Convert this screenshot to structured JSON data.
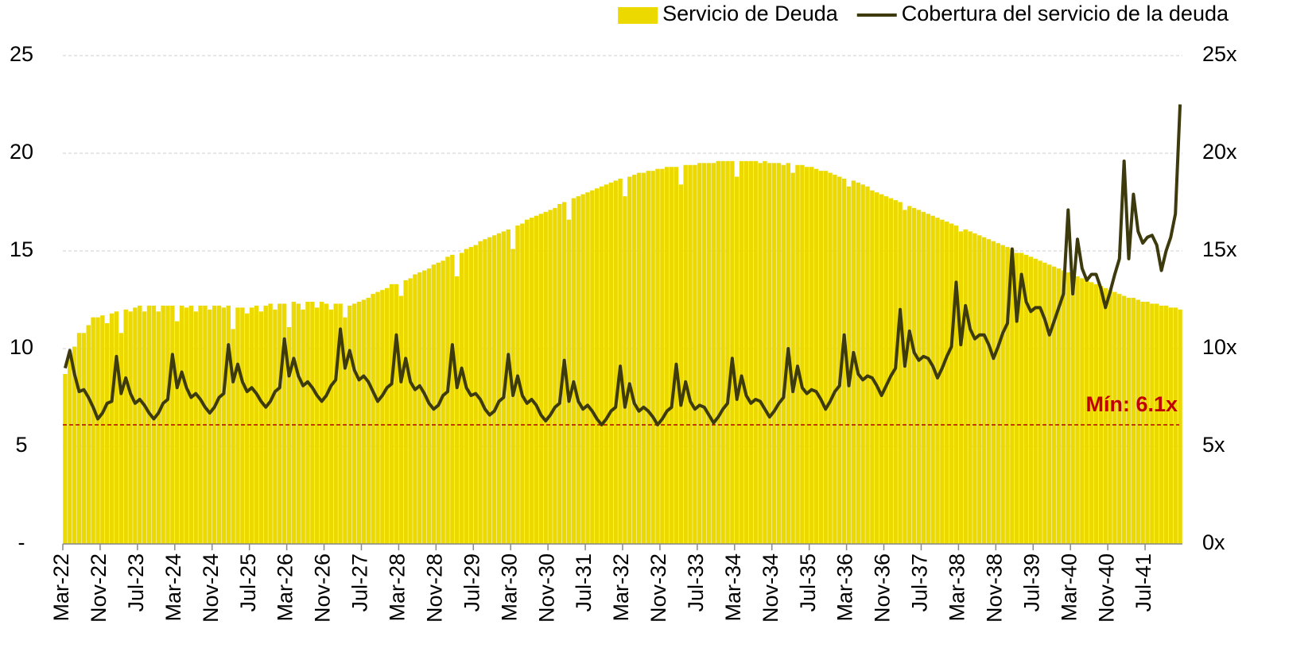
{
  "chart_data": {
    "type": "bar",
    "categories": [
      "Mar-22",
      null,
      null,
      null,
      null,
      null,
      null,
      null,
      "Nov-22",
      null,
      null,
      null,
      null,
      null,
      null,
      null,
      "Jul-23",
      null,
      null,
      null,
      null,
      null,
      null,
      null,
      "Mar-24",
      null,
      null,
      null,
      null,
      null,
      null,
      null,
      "Nov-24",
      null,
      null,
      null,
      null,
      null,
      null,
      null,
      "Jul-25",
      null,
      null,
      null,
      null,
      null,
      null,
      null,
      "Mar-26",
      null,
      null,
      null,
      null,
      null,
      null,
      null,
      "Nov-26",
      null,
      null,
      null,
      null,
      null,
      null,
      null,
      "Jul-27",
      null,
      null,
      null,
      null,
      null,
      null,
      null,
      "Mar-28",
      null,
      null,
      null,
      null,
      null,
      null,
      null,
      "Nov-28",
      null,
      null,
      null,
      null,
      null,
      null,
      null,
      "Jul-29",
      null,
      null,
      null,
      null,
      null,
      null,
      null,
      "Mar-30",
      null,
      null,
      null,
      null,
      null,
      null,
      null,
      "Nov-30",
      null,
      null,
      null,
      null,
      null,
      null,
      null,
      "Jul-31",
      null,
      null,
      null,
      null,
      null,
      null,
      null,
      "Mar-32",
      null,
      null,
      null,
      null,
      null,
      null,
      null,
      "Nov-32",
      null,
      null,
      null,
      null,
      null,
      null,
      null,
      "Jul-33",
      null,
      null,
      null,
      null,
      null,
      null,
      null,
      "Mar-34",
      null,
      null,
      null,
      null,
      null,
      null,
      null,
      "Nov-34",
      null,
      null,
      null,
      null,
      null,
      null,
      null,
      "Jul-35",
      null,
      null,
      null,
      null,
      null,
      null,
      null,
      "Mar-36",
      null,
      null,
      null,
      null,
      null,
      null,
      null,
      "Nov-36",
      null,
      null,
      null,
      null,
      null,
      null,
      null,
      "Jul-37",
      null,
      null,
      null,
      null,
      null,
      null,
      null,
      "Mar-38",
      null,
      null,
      null,
      null,
      null,
      null,
      null,
      "Nov-38",
      null,
      null,
      null,
      null,
      null,
      null,
      null,
      "Jul-39",
      null,
      null,
      null,
      null,
      null,
      null,
      null,
      "Mar-40",
      null,
      null,
      null,
      null,
      null,
      null,
      null,
      "Nov-40",
      null,
      null,
      null,
      null,
      null,
      null,
      null,
      "Jul-41",
      null,
      null,
      null,
      null,
      null,
      null,
      null
    ],
    "series": [
      {
        "name": "Servicio de Deuda",
        "type": "bar",
        "color": "#ebd900",
        "axis": "y",
        "values": [
          8.7,
          9.8,
          10.1,
          10.8,
          10.8,
          11.2,
          11.6,
          11.6,
          11.7,
          11.3,
          11.8,
          11.9,
          10.8,
          12.0,
          11.9,
          12.1,
          12.2,
          11.9,
          12.2,
          12.2,
          11.9,
          12.2,
          12.2,
          12.2,
          11.4,
          12.2,
          12.1,
          12.2,
          11.9,
          12.2,
          12.2,
          12.0,
          12.2,
          12.2,
          12.1,
          12.2,
          11.0,
          12.1,
          12.1,
          11.8,
          12.1,
          12.2,
          11.9,
          12.2,
          12.3,
          12.0,
          12.3,
          12.3,
          11.1,
          12.4,
          12.3,
          12.0,
          12.4,
          12.4,
          12.1,
          12.4,
          12.3,
          12.0,
          12.3,
          12.3,
          11.6,
          12.2,
          12.3,
          12.4,
          12.5,
          12.6,
          12.8,
          12.9,
          13.0,
          13.1,
          13.3,
          13.3,
          12.7,
          13.5,
          13.6,
          13.8,
          13.9,
          14.0,
          14.1,
          14.3,
          14.4,
          14.5,
          14.7,
          14.8,
          13.7,
          14.9,
          15.1,
          15.2,
          15.3,
          15.5,
          15.6,
          15.7,
          15.8,
          15.9,
          16.0,
          16.1,
          15.1,
          16.3,
          16.4,
          16.6,
          16.7,
          16.8,
          16.9,
          17.0,
          17.1,
          17.2,
          17.4,
          17.5,
          16.6,
          17.7,
          17.8,
          17.9,
          18.0,
          18.1,
          18.2,
          18.3,
          18.4,
          18.5,
          18.6,
          18.7,
          17.8,
          18.8,
          18.9,
          19.0,
          19.0,
          19.1,
          19.1,
          19.2,
          19.2,
          19.3,
          19.3,
          19.3,
          18.4,
          19.4,
          19.4,
          19.4,
          19.5,
          19.5,
          19.5,
          19.5,
          19.6,
          19.6,
          19.6,
          19.6,
          18.8,
          19.6,
          19.6,
          19.6,
          19.6,
          19.5,
          19.6,
          19.5,
          19.5,
          19.5,
          19.4,
          19.5,
          19.0,
          19.4,
          19.4,
          19.3,
          19.3,
          19.2,
          19.1,
          19.1,
          19.0,
          18.9,
          18.8,
          18.7,
          18.3,
          18.6,
          18.5,
          18.4,
          18.3,
          18.1,
          18.0,
          17.9,
          17.8,
          17.7,
          17.6,
          17.5,
          17.1,
          17.3,
          17.2,
          17.1,
          17.0,
          16.9,
          16.8,
          16.7,
          16.6,
          16.5,
          16.4,
          16.3,
          16.0,
          16.1,
          16.0,
          15.9,
          15.8,
          15.7,
          15.6,
          15.5,
          15.4,
          15.3,
          15.2,
          15.1,
          14.9,
          14.9,
          14.8,
          14.7,
          14.6,
          14.5,
          14.4,
          14.3,
          14.2,
          14.1,
          14.0,
          13.9,
          13.7,
          13.7,
          13.6,
          13.5,
          13.4,
          13.3,
          13.2,
          13.1,
          13.0,
          12.9,
          12.8,
          12.7,
          12.6,
          12.6,
          12.5,
          12.4,
          12.4,
          12.3,
          12.3,
          12.2,
          12.2,
          12.1,
          12.1,
          12.0
        ]
      },
      {
        "name": "Cobertura del servicio de la deuda",
        "type": "line",
        "color": "#3d3b0d",
        "axis": "y2",
        "values": [
          9.0,
          9.9,
          8.7,
          7.8,
          7.9,
          7.5,
          7.0,
          6.4,
          6.7,
          7.2,
          7.3,
          9.6,
          7.7,
          8.5,
          7.7,
          7.2,
          7.4,
          7.1,
          6.7,
          6.4,
          6.7,
          7.2,
          7.4,
          9.7,
          8.0,
          8.8,
          8.0,
          7.5,
          7.7,
          7.4,
          7.0,
          6.7,
          7.0,
          7.5,
          7.7,
          10.2,
          8.3,
          9.2,
          8.3,
          7.8,
          8.0,
          7.7,
          7.3,
          7.0,
          7.3,
          7.8,
          8.0,
          10.5,
          8.6,
          9.5,
          8.6,
          8.1,
          8.3,
          8.0,
          7.6,
          7.3,
          7.6,
          8.1,
          8.4,
          11.0,
          9.0,
          9.9,
          8.9,
          8.4,
          8.6,
          8.3,
          7.8,
          7.3,
          7.6,
          8.0,
          8.2,
          10.7,
          8.3,
          9.5,
          8.3,
          7.9,
          8.1,
          7.7,
          7.2,
          6.9,
          7.1,
          7.6,
          7.8,
          10.2,
          8.0,
          9.0,
          8.0,
          7.6,
          7.7,
          7.4,
          6.9,
          6.6,
          6.8,
          7.3,
          7.5,
          9.7,
          7.6,
          8.6,
          7.6,
          7.2,
          7.4,
          7.1,
          6.6,
          6.3,
          6.6,
          7.0,
          7.2,
          9.4,
          7.3,
          8.3,
          7.3,
          6.9,
          7.1,
          6.8,
          6.4,
          6.1,
          6.4,
          6.8,
          7.0,
          9.1,
          7.0,
          8.2,
          7.2,
          6.8,
          7.0,
          6.8,
          6.5,
          6.1,
          6.4,
          6.8,
          7.0,
          9.2,
          7.1,
          8.3,
          7.3,
          6.9,
          7.1,
          7.0,
          6.6,
          6.2,
          6.5,
          6.9,
          7.2,
          9.5,
          7.4,
          8.6,
          7.6,
          7.2,
          7.4,
          7.3,
          6.9,
          6.5,
          6.8,
          7.2,
          7.5,
          10.0,
          7.8,
          9.1,
          8.0,
          7.7,
          7.9,
          7.8,
          7.4,
          6.9,
          7.3,
          7.8,
          8.1,
          10.7,
          8.1,
          9.8,
          8.7,
          8.4,
          8.6,
          8.5,
          8.1,
          7.6,
          8.1,
          8.6,
          9.0,
          12.0,
          9.1,
          10.9,
          9.8,
          9.4,
          9.6,
          9.5,
          9.1,
          8.5,
          9.0,
          9.6,
          10.1,
          13.4,
          10.2,
          12.2,
          11.0,
          10.5,
          10.7,
          10.7,
          10.2,
          9.5,
          10.1,
          10.8,
          11.3,
          15.1,
          11.4,
          13.8,
          12.4,
          11.9,
          12.1,
          12.1,
          11.5,
          10.7,
          11.4,
          12.1,
          12.8,
          17.1,
          12.8,
          15.6,
          14.1,
          13.5,
          13.8,
          13.8,
          13.1,
          12.1,
          12.9,
          13.8,
          14.6,
          19.6,
          14.6,
          17.9,
          16.0,
          15.4,
          15.7,
          15.8,
          15.3,
          14.0,
          15.0,
          15.7,
          16.9,
          22.5
        ]
      }
    ],
    "ylim": [
      0,
      25
    ],
    "yticks": [
      {
        "value": 0,
        "label": "-"
      },
      5,
      10,
      15,
      20,
      25
    ],
    "y2lim": [
      0,
      25
    ],
    "y2ticks": [
      {
        "value": 0,
        "label": "0x"
      },
      {
        "value": 5,
        "label": "5x"
      },
      {
        "value": 10,
        "label": "10x"
      },
      {
        "value": 15,
        "label": "15x"
      },
      {
        "value": 20,
        "label": "20x"
      },
      {
        "value": 25,
        "label": "25x"
      }
    ],
    "grid": true,
    "legend": "top-right",
    "reference_line": {
      "value": 6.1,
      "label": "Mín: 6.1x",
      "color": "#c00000"
    }
  }
}
